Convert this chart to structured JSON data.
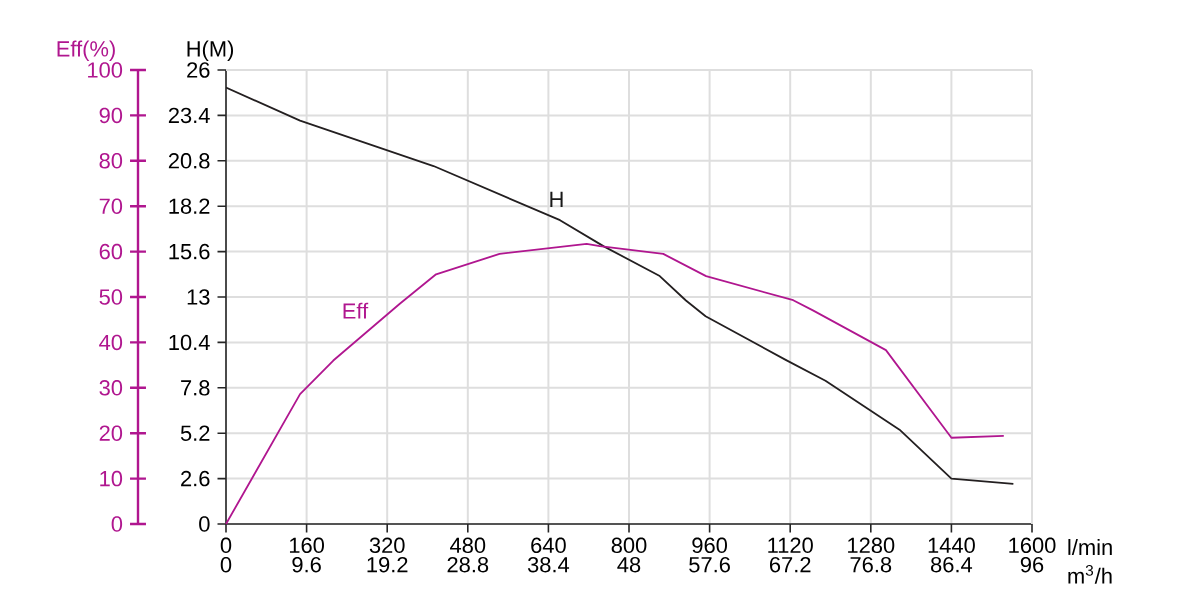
{
  "chart_data": {
    "type": "line",
    "xlabel": "l/min",
    "ylabel": "Eff(%)",
    "y2label": "H(M)",
    "x2label": "m$^{3}$/h",
    "xlim": [
      0,
      1600
    ],
    "xticks": [
      0,
      160,
      320,
      480,
      640,
      800,
      960,
      1120,
      1280,
      1440,
      1600
    ],
    "x2lim": [
      0,
      96
    ],
    "x2ticks": [
      0,
      9.6,
      19.2,
      28.8,
      38.4,
      48,
      57.6,
      67.2,
      76.8,
      86.4,
      96
    ],
    "ylim": [
      0,
      100
    ],
    "yticks": [
      0,
      10,
      20,
      30,
      40,
      50,
      60,
      70,
      80,
      90,
      100
    ],
    "y2lim": [
      0,
      26
    ],
    "y2ticks": [
      0,
      2.6,
      5.2,
      7.8,
      10.4,
      13,
      15.6,
      18.2,
      20.8,
      23.4,
      26
    ],
    "grid": true,
    "series": [
      {
        "color": "#b0168f",
        "x": [
          0,
          147,
          213,
          345,
          417,
          543,
          716,
          742,
          868,
          953,
          1126,
          1166,
          1310,
          1440,
          1544
        ],
        "values": [
          0,
          28.6,
          36,
          48.5,
          55,
          59.5,
          61.7,
          61.2,
          59.5,
          54.6,
          49.3,
          47,
          38.3,
          19,
          19.4
        ]
      },
      {
        "color": "#231f20",
        "axis": "y2",
        "x": [
          0,
          147,
          412,
          663,
          750,
          861,
          913,
          952,
          1111,
          1190,
          1337,
          1440,
          1563
        ],
        "values": [
          25,
          23.1,
          20.5,
          17.4,
          15.9,
          14.2,
          12.8,
          11.9,
          9.4,
          8.2,
          5.4,
          2.6,
          2.3
        ]
      }
    ],
    "annotations": [
      "H",
      "Eff"
    ]
  }
}
